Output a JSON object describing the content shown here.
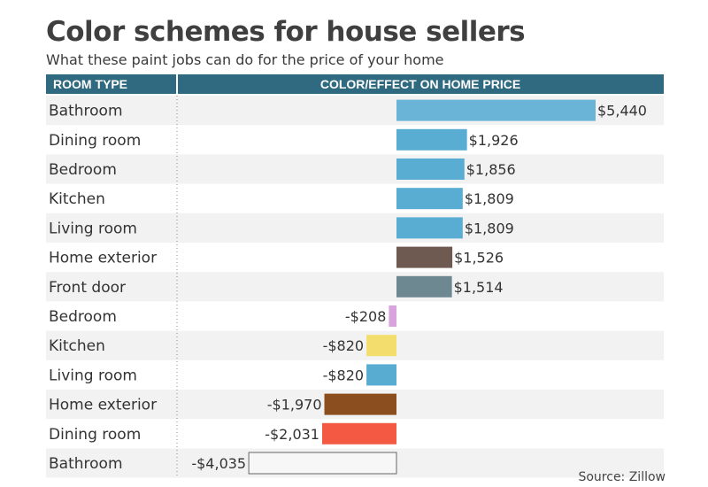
{
  "chart_data": {
    "type": "bar",
    "title": "Color schemes for house sellers",
    "subtitle": "What these paint jobs can do for the price of your home",
    "header": {
      "col1": "ROOM TYPE",
      "col2": "COLOR/EFFECT ON HOME PRICE"
    },
    "source": "Source: Zillow",
    "xlim": [
      -4100,
      5500
    ],
    "rows": [
      {
        "category": "Bathroom",
        "value": 5440,
        "label": "$5,440",
        "color": "#6ab4d8"
      },
      {
        "category": "Dining room",
        "value": 1926,
        "label": "$1,926",
        "color": "#59acd2"
      },
      {
        "category": "Bedroom",
        "value": 1856,
        "label": "$1,856",
        "color": "#59acd2"
      },
      {
        "category": "Kitchen",
        "value": 1809,
        "label": "$1,809",
        "color": "#59acd2"
      },
      {
        "category": "Living room",
        "value": 1809,
        "label": "$1,809",
        "color": "#59acd2"
      },
      {
        "category": "Home exterior",
        "value": 1526,
        "label": "$1,526",
        "color": "#6e5a50"
      },
      {
        "category": "Front door",
        "value": 1514,
        "label": "$1,514",
        "color": "#6e8892"
      },
      {
        "category": "Bedroom",
        "value": -208,
        "label": "-$208",
        "color": "#d9a3dd"
      },
      {
        "category": "Kitchen",
        "value": -820,
        "label": "-$820",
        "color": "#f3de6d"
      },
      {
        "category": "Living room",
        "value": -820,
        "label": "-$820",
        "color": "#58acd2"
      },
      {
        "category": "Home exterior",
        "value": -1970,
        "label": "-$1,970",
        "color": "#8b4f1f"
      },
      {
        "category": "Dining room",
        "value": -2031,
        "label": "-$2,031",
        "color": "#f45a43"
      },
      {
        "category": "Bathroom",
        "value": -4035,
        "label": "-$4,035",
        "color": "#f7f7f7"
      }
    ],
    "colors": {
      "header_bg": "#2f6a80",
      "row_alt": "#f2f2f2",
      "bar_outline": "#666666"
    }
  }
}
